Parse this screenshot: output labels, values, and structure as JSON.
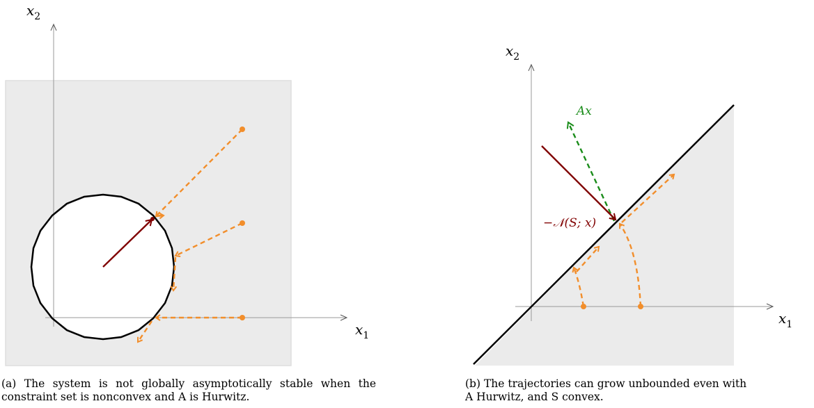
{
  "panel_a": {
    "x_axis_label": "x",
    "x_axis_sub": "1",
    "y_axis_label": "x",
    "y_axis_sub": "2",
    "caption": "(a) The system is not globally asymptotically stable when the constraint set is nonconvex and A is Hurwitz."
  },
  "panel_b": {
    "x_axis_label": "x",
    "x_axis_sub": "1",
    "y_axis_label": "x",
    "y_axis_sub": "2",
    "ax_label": "Ax",
    "normal_cone_label": "−𝒩(S; x)",
    "caption_line1": "(b) The trajectories can grow unbounded even with",
    "caption_line2": "A Hurwitz, and S convex."
  },
  "colors": {
    "shade": "#ebebeb",
    "shade_border": "#dedede",
    "axis": "#9a9a9a",
    "trajectory": "#f28e2b",
    "normal_vector": "#800000",
    "ax_vector": "#1a8c1a",
    "boundary": "#000000"
  }
}
